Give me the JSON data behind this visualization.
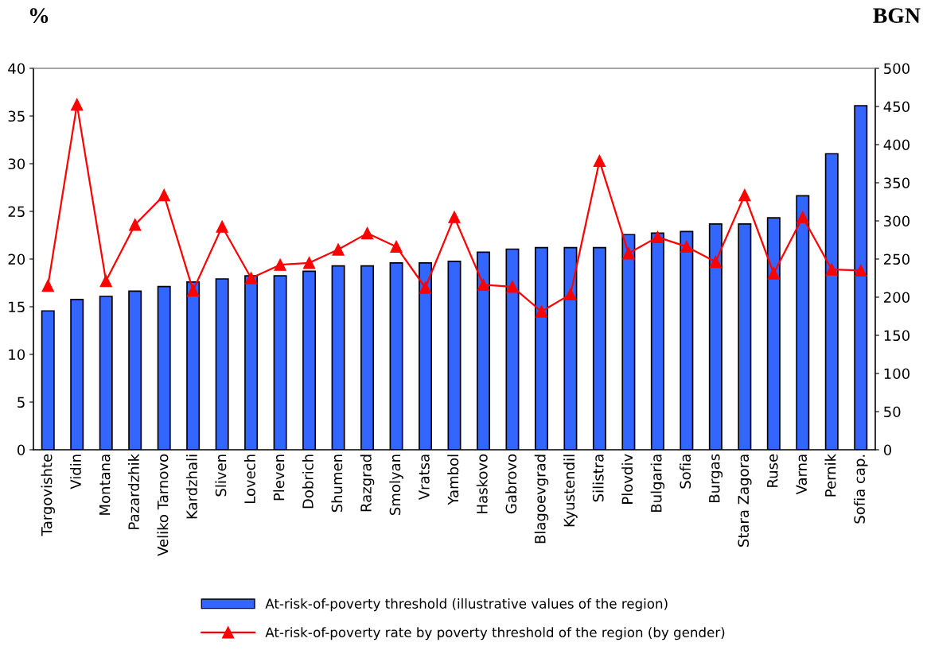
{
  "chart_data": {
    "type": "bar",
    "ylabel": "%",
    "y2label": "BGN",
    "categories": [
      "Targovishte",
      "Vidin",
      "Montana",
      "Pazardzhik",
      "Veliko Tarnovo",
      "Kardzhali",
      "Sliven",
      "Lovech",
      "Pleven",
      "Dobrich",
      "Shumen",
      "Razgrad",
      "Smolyan",
      "Vratsa",
      "Yambol",
      "Haskovo",
      "Gabrovo",
      "Blagoevgrad",
      "Kyustendil",
      "Silistra",
      "Plovdiv",
      "Bulgaria",
      "Sofia",
      "Burgas",
      "Stara Zagora",
      "Ruse",
      "Varna",
      "Pernik",
      "Sofia cap."
    ],
    "series": [
      {
        "name": "At-risk-of-poverty threshold (illustrative values of the region)",
        "axis": "y2",
        "color": "#3366ff",
        "values": [
          182,
          197,
          201,
          208,
          214,
          220,
          224,
          228,
          228,
          234,
          241,
          241,
          245,
          245,
          247,
          259,
          263,
          265,
          265,
          265,
          282,
          284,
          286,
          296,
          296,
          304,
          333,
          388,
          451
        ]
      },
      {
        "name": "At-risk-of-poverty rate by poverty threshold of the region (by gender)",
        "type": "line",
        "axis": "y",
        "color": "#ff0000",
        "marker": "triangle",
        "values": [
          17.2,
          36.2,
          17.7,
          23.6,
          26.7,
          16.7,
          23.4,
          18.0,
          19.4,
          19.6,
          21.0,
          22.7,
          21.3,
          17.0,
          24.4,
          17.3,
          17.1,
          14.5,
          16.3,
          30.3,
          20.6,
          22.3,
          21.3,
          19.7,
          26.7,
          18.5,
          24.4,
          18.9,
          18.8
        ]
      }
    ],
    "ylim": [
      0,
      40
    ],
    "yticks": [
      0,
      5,
      10,
      15,
      20,
      25,
      30,
      35,
      40
    ],
    "y2lim": [
      0,
      500
    ],
    "y2ticks": [
      0,
      50,
      100,
      150,
      200,
      250,
      300,
      350,
      400,
      450,
      500
    ],
    "grid": false,
    "legend": "bottom"
  }
}
